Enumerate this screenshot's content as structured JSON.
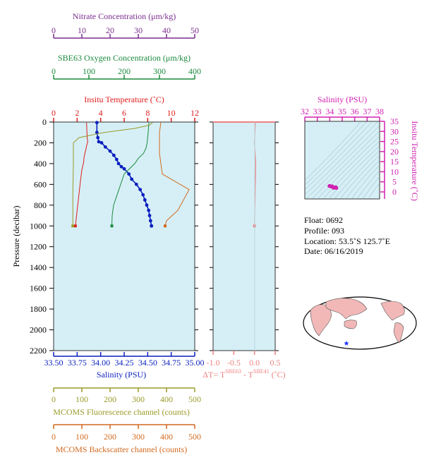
{
  "colors": {
    "nitrate": "#7b2d8e",
    "oxygen": "#1a8a3c",
    "temperature": "#e01b1b",
    "salinity": "#0a1fbf",
    "fluorescence": "#9a9a2a",
    "backscatter": "#d2691e",
    "delta": "#f08080",
    "ts": "#d020b0",
    "panel_bg": "#d6eff6",
    "land": "#f2b8b8"
  },
  "axes": {
    "nitrate": {
      "title": "Nitrate Concentration (μm/kg)",
      "ticks": [
        "0",
        "10",
        "20",
        "30",
        "40",
        "50"
      ]
    },
    "oxygen": {
      "title": "SBE63 Oxygen Concentration (μm/kg)",
      "ticks": [
        "0",
        "100",
        "200",
        "300",
        "400"
      ]
    },
    "temperature": {
      "title": "Insitu Temperature (˚C)",
      "ticks": [
        "0",
        "2",
        "4",
        "6",
        "8",
        "10",
        "12"
      ]
    },
    "salinity": {
      "title": "Salinity (PSU)",
      "ticks": [
        "33.50",
        "33.75",
        "34.00",
        "34.25",
        "34.50",
        "34.75",
        "35.00"
      ]
    },
    "pressure": {
      "title": "Pressure (decibar)",
      "ticks": [
        "0",
        "200",
        "400",
        "600",
        "800",
        "1000",
        "1200",
        "1400",
        "1600",
        "1800",
        "2000",
        "2200"
      ]
    },
    "delta": {
      "title_prefix": "ΔT= T",
      "sup1": "SBE63",
      "mid": " - T",
      "sup2": "SBE41",
      "suffix": " (˚C)",
      "ticks": [
        "-1.0",
        "-0.5",
        "0.0",
        "0.5"
      ]
    },
    "fluorescence": {
      "title": "MCOMS Fluorescence channel (counts)",
      "ticks": [
        "0",
        "100",
        "200",
        "300",
        "400",
        "500"
      ]
    },
    "backscatter": {
      "title": "MCOMS Backscatter channel (counts)",
      "ticks": [
        "0",
        "100",
        "200",
        "300",
        "400",
        "500"
      ]
    },
    "ts_salinity": {
      "title": "Salinity (PSU)",
      "ticks": [
        "32",
        "33",
        "34",
        "35",
        "36",
        "37",
        "38"
      ]
    },
    "ts_temperature": {
      "title": "Insitu Temperature (˚C)",
      "ticks": [
        "35",
        "30",
        "25",
        "20",
        "15",
        "10",
        "5",
        "0"
      ]
    }
  },
  "info": {
    "float": "Float:  0692",
    "profile": "Profile:  093",
    "location": "Location:  53.5˚S  125.7˚E",
    "date": "Date:  06/16/2019"
  },
  "chart_data": [
    {
      "type": "line",
      "title": "",
      "ylabel": "Pressure (decibar)",
      "ylim": [
        2200,
        0
      ],
      "series": [
        {
          "name": "Insitu Temperature (˚C)",
          "xlim": [
            0,
            12
          ],
          "points": [
            [
              2.8,
              5
            ],
            [
              2.85,
              150
            ],
            [
              2.9,
              190
            ],
            [
              2.8,
              230
            ],
            [
              2.75,
              260
            ],
            [
              2.6,
              330
            ],
            [
              2.55,
              390
            ],
            [
              2.4,
              460
            ],
            [
              2.3,
              550
            ],
            [
              2.2,
              650
            ],
            [
              2.1,
              750
            ],
            [
              2.0,
              850
            ],
            [
              1.9,
              950
            ],
            [
              1.85,
              1000
            ]
          ]
        },
        {
          "name": "Salinity (PSU)",
          "xlim": [
            33.5,
            35.0
          ],
          "points": [
            [
              33.96,
              5
            ],
            [
              33.96,
              100
            ],
            [
              33.97,
              150
            ],
            [
              33.98,
              190
            ],
            [
              34.01,
              200
            ],
            [
              34.05,
              240
            ],
            [
              34.1,
              280
            ],
            [
              34.14,
              320
            ],
            [
              34.17,
              360
            ],
            [
              34.19,
              400
            ],
            [
              34.22,
              430
            ],
            [
              34.25,
              450
            ],
            [
              34.3,
              500
            ],
            [
              34.33,
              550
            ],
            [
              34.38,
              600
            ],
            [
              34.42,
              650
            ],
            [
              34.45,
              700
            ],
            [
              34.47,
              750
            ],
            [
              34.49,
              800
            ],
            [
              34.51,
              850
            ],
            [
              34.52,
              900
            ],
            [
              34.53,
              950
            ],
            [
              34.54,
              1000
            ]
          ]
        },
        {
          "name": "SBE63 Oxygen Concentration (μm/kg)",
          "xlim": [
            0,
            400
          ],
          "points": [
            [
              270,
              5
            ],
            [
              268,
              100
            ],
            [
              265,
              200
            ],
            [
              262,
              250
            ],
            [
              255,
              300
            ],
            [
              240,
              350
            ],
            [
              230,
              400
            ],
            [
              215,
              450
            ],
            [
              200,
              500
            ],
            [
              190,
              600
            ],
            [
              180,
              700
            ],
            [
              170,
              800
            ],
            [
              166,
              900
            ],
            [
              165,
              1000
            ]
          ]
        },
        {
          "name": "MCOMS Fluorescence channel (counts)",
          "xlim": [
            0,
            500
          ],
          "points": [
            [
              350,
              5
            ],
            [
              340,
              30
            ],
            [
              290,
              60
            ],
            [
              180,
              100
            ],
            [
              90,
              150
            ],
            [
              70,
              200
            ],
            [
              70,
              400
            ],
            [
              68,
              700
            ],
            [
              68,
              1000
            ]
          ]
        },
        {
          "name": "MCOMS Backscatter channel (counts)",
          "xlim": [
            0,
            500
          ],
          "points": [
            [
              380,
              5
            ],
            [
              375,
              100
            ],
            [
              375,
              300
            ],
            [
              385,
              500
            ],
            [
              480,
              650
            ],
            [
              470,
              700
            ],
            [
              460,
              750
            ],
            [
              450,
              800
            ],
            [
              440,
              850
            ],
            [
              420,
              900
            ],
            [
              400,
              950
            ],
            [
              395,
              1000
            ]
          ]
        }
      ]
    },
    {
      "type": "line",
      "xlabel": "ΔT= TSBE63 - TSBE41 (˚C)",
      "xlim": [
        -1.0,
        0.5
      ],
      "ylim": [
        2200,
        0
      ],
      "series": [
        {
          "name": "ΔT",
          "points": [
            [
              0.02,
              5
            ],
            [
              0.0,
              200
            ],
            [
              0.03,
              400
            ],
            [
              0.02,
              600
            ],
            [
              0.01,
              800
            ],
            [
              0.0,
              1000
            ]
          ]
        }
      ]
    },
    {
      "type": "scatter",
      "xlabel": "Salinity (PSU)",
      "ylabel": "Insitu Temperature (˚C)",
      "xlim": [
        32,
        38
      ],
      "ylim": [
        -3,
        35
      ],
      "series": [
        {
          "name": "T-S",
          "points": [
            [
              34.3,
              2.0
            ],
            [
              34.4,
              2.2
            ],
            [
              34.5,
              2.3
            ],
            [
              34.2,
              2.8
            ],
            [
              34.0,
              3.0
            ],
            [
              33.97,
              2.9
            ],
            [
              34.1,
              2.6
            ],
            [
              34.45,
              2.1
            ],
            [
              34.53,
              1.9
            ]
          ]
        }
      ]
    }
  ]
}
